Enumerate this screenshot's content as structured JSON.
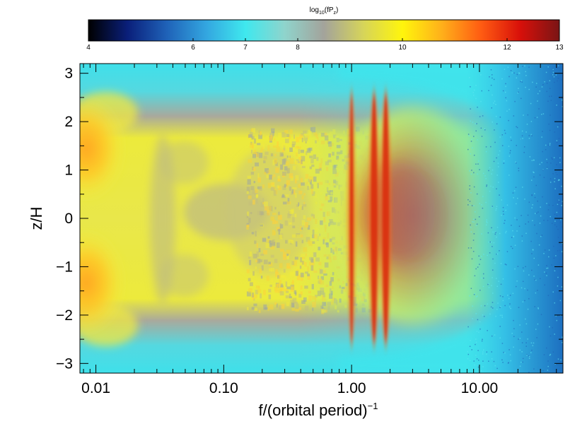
{
  "chart_data": {
    "type": "heatmap",
    "title": "",
    "xlabel": "f/(orbital period)",
    "xlabel_superscript": "−1",
    "ylabel": "z/H",
    "xscale": "log",
    "xlim": [
      0.0075,
      45
    ],
    "ylim": [
      -3.2,
      3.2
    ],
    "x_ticks": [
      0.01,
      0.1,
      1.0,
      10.0
    ],
    "x_tick_labels": [
      "0.01",
      "0.10",
      "1.00",
      "10.00"
    ],
    "y_ticks": [
      3,
      2,
      1,
      0,
      -1,
      -2,
      -3
    ],
    "y_tick_labels": [
      "3",
      "2",
      "1",
      "0",
      "−1",
      "−2",
      "−3"
    ],
    "colorbar": {
      "label": "log",
      "label_subscript": "10",
      "label_suffix": "(fP",
      "label_suffix_subscript": "z",
      "label_close": ")",
      "range": [
        4,
        13
      ],
      "ticks": [
        4,
        6,
        7,
        8,
        10,
        12,
        13
      ],
      "tick_labels": [
        "4",
        "6",
        "7",
        "8",
        "10",
        "12",
        "13"
      ],
      "position": "top",
      "colors": [
        "#000000",
        "#0a1f7a",
        "#1f62b8",
        "#33a6e0",
        "#3fe8ee",
        "#8fd4cc",
        "#a3a39b",
        "#d6d45a",
        "#fff50c",
        "#ffb01a",
        "#ff5c12",
        "#d8100a",
        "#7a1515"
      ]
    },
    "features": [
      {
        "description": "vertical resonance line",
        "x": 1.0
      },
      {
        "description": "vertical resonance line",
        "x": 1.5
      },
      {
        "description": "vertical resonance line",
        "x": 1.85
      }
    ]
  }
}
